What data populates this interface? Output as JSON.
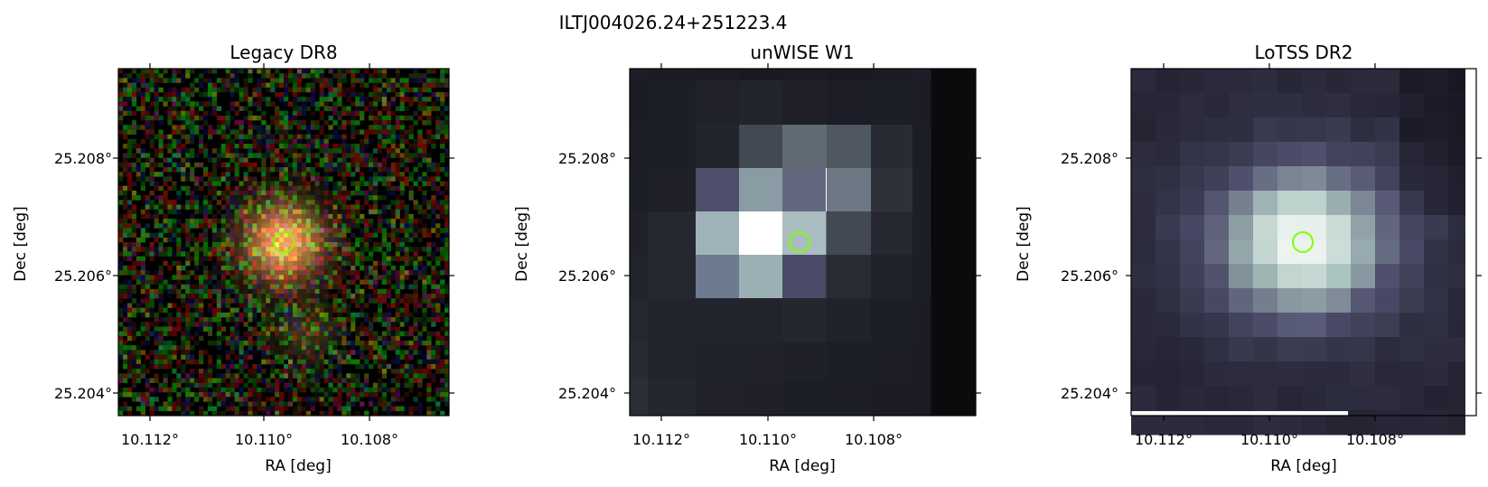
{
  "figure": {
    "suptitle": "ILTJ004026.24+251223.4"
  },
  "panels": [
    {
      "title": "Legacy DR8",
      "kind": "optical-rgb-noise",
      "xlabel": "RA [deg]",
      "ylabel": "Dec [deg]",
      "xticks": [
        "10.112°",
        "10.110°",
        "10.108°"
      ],
      "yticks": [
        "25.208°",
        "25.206°",
        "25.204°"
      ]
    },
    {
      "title": "unWISE W1",
      "kind": "infrared-grey",
      "xlabel": "RA [deg]",
      "ylabel": "Dec [deg]",
      "xticks": [
        "10.112°",
        "10.110°",
        "10.108°"
      ],
      "yticks": [
        "25.208°",
        "25.206°",
        "25.204°"
      ]
    },
    {
      "title": "LoTSS DR2",
      "kind": "radio-bone",
      "xlabel": "RA [deg]",
      "ylabel": "Dec [deg]",
      "xticks": [
        "10.112°",
        "10.110°",
        "10.108°"
      ],
      "yticks": [
        "25.208°",
        "25.206°",
        "25.204°"
      ]
    }
  ],
  "marker": {
    "shape": "circle",
    "color": "#7fff00"
  },
  "colors": {
    "legacy_core": "#e8a060",
    "wise_peak": "#ffffff",
    "lotss_peak": "#eef6f4"
  }
}
